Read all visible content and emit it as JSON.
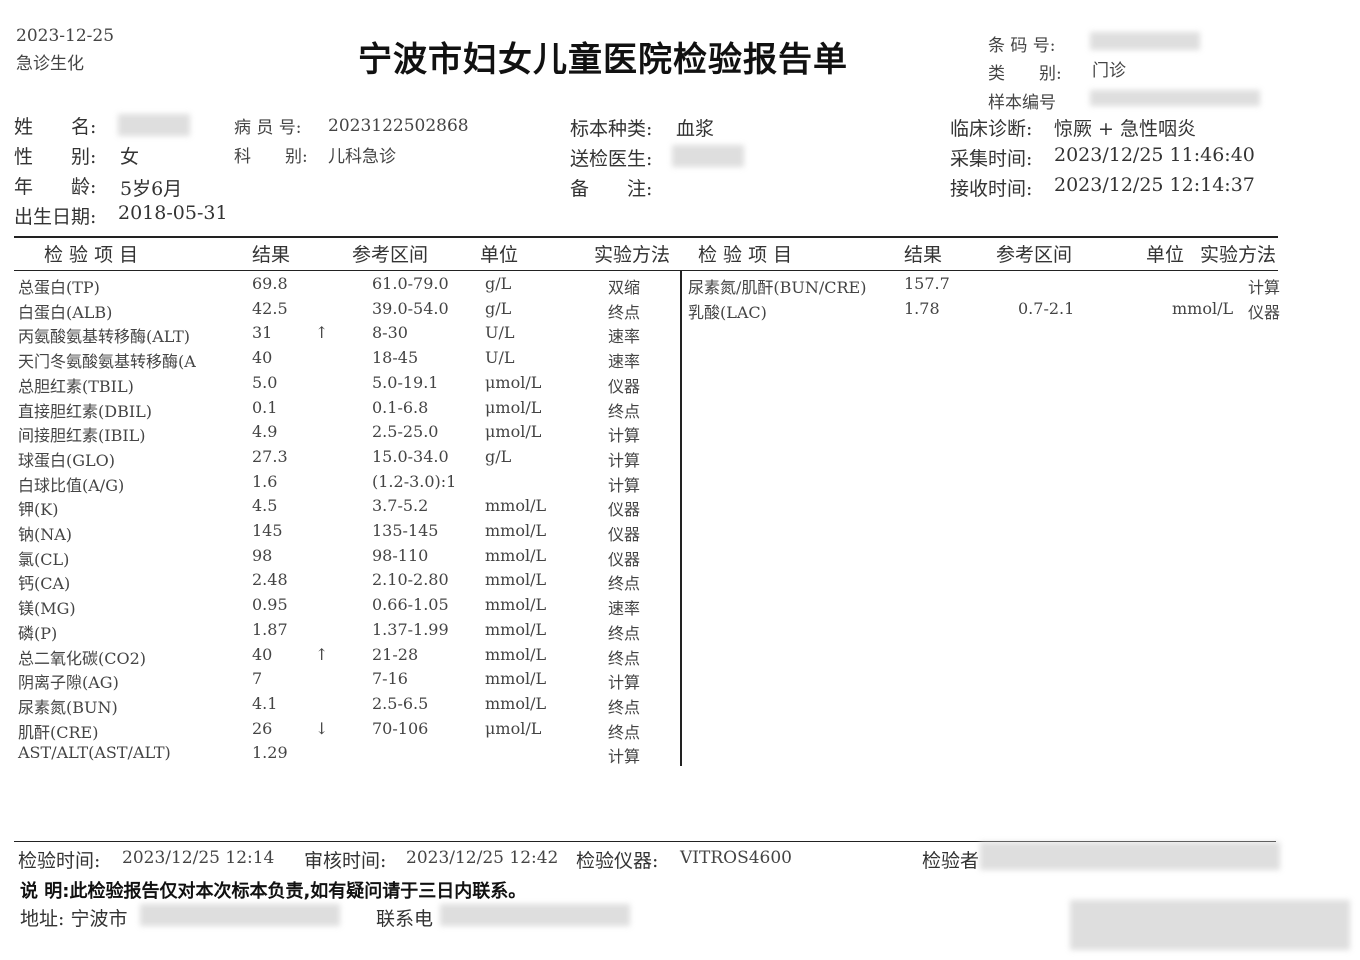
{
  "header": {
    "date": "2023-12-25",
    "category": "急诊生化",
    "title": "宁波市妇女儿童医院检验报告单",
    "barcode_label": "条 码 号:",
    "type_label": "类　　别:",
    "type_value": "门诊",
    "sample_no_label": "样本编号"
  },
  "patient": {
    "name_label": "姓　　名:",
    "patient_id_label": "病 员 号:",
    "patient_id": "2023122502868",
    "gender_label": "性　　别:",
    "gender": "女",
    "dept_label": "科　　别:",
    "dept": "儿科急诊",
    "age_label": "年　　龄:",
    "age": "5岁6月",
    "dob_label": "出生日期:",
    "dob": "2018-05-31",
    "specimen_label": "标本种类:",
    "specimen": "血浆",
    "doctor_label": "送检医生:",
    "remark_label": "备　　注:",
    "diagnosis_label": "临床诊断:",
    "diagnosis": "惊厥 + 急性咽炎",
    "collect_label": "采集时间:",
    "collect_time": "2023/12/25 11:46:40",
    "receive_label": "接收时间:",
    "receive_time": "2023/12/25 12:14:37"
  },
  "table": {
    "headers": [
      "检 验 项 目",
      "结果",
      "参考区间",
      "单位",
      "实验方法"
    ],
    "right_headers": [
      "检 验 项 目",
      "结果",
      "参考区间",
      "单位",
      "实验方法"
    ],
    "left_rows": [
      {
        "item": "总蛋白(TP)",
        "result": "69.8",
        "flag": "",
        "ref": "61.0-79.0",
        "unit": "g/L",
        "method": "双缩"
      },
      {
        "item": "白蛋白(ALB)",
        "result": "42.5",
        "flag": "",
        "ref": "39.0-54.0",
        "unit": "g/L",
        "method": "终点"
      },
      {
        "item": "丙氨酸氨基转移酶(ALT)",
        "result": "31",
        "flag": "↑",
        "ref": "8-30",
        "unit": "U/L",
        "method": "速率"
      },
      {
        "item": "天门冬氨酸氨基转移酶(A",
        "result": "40",
        "flag": "",
        "ref": "18-45",
        "unit": "U/L",
        "method": "速率"
      },
      {
        "item": "总胆红素(TBIL)",
        "result": "5.0",
        "flag": "",
        "ref": "5.0-19.1",
        "unit": "μmol/L",
        "method": "仪器"
      },
      {
        "item": "直接胆红素(DBIL)",
        "result": "0.1",
        "flag": "",
        "ref": "0.1-6.8",
        "unit": "μmol/L",
        "method": "终点"
      },
      {
        "item": "间接胆红素(IBIL)",
        "result": "4.9",
        "flag": "",
        "ref": "2.5-25.0",
        "unit": "μmol/L",
        "method": "计算"
      },
      {
        "item": "球蛋白(GLO)",
        "result": "27.3",
        "flag": "",
        "ref": "15.0-34.0",
        "unit": "g/L",
        "method": "计算"
      },
      {
        "item": "白球比值(A/G)",
        "result": "1.6",
        "flag": "",
        "ref": "(1.2-3.0):1",
        "unit": "",
        "method": "计算"
      },
      {
        "item": "钾(K)",
        "result": "4.5",
        "flag": "",
        "ref": "3.7-5.2",
        "unit": "mmol/L",
        "method": "仪器"
      },
      {
        "item": "钠(NA)",
        "result": "145",
        "flag": "",
        "ref": "135-145",
        "unit": "mmol/L",
        "method": "仪器"
      },
      {
        "item": "氯(CL)",
        "result": "98",
        "flag": "",
        "ref": "98-110",
        "unit": "mmol/L",
        "method": "仪器"
      },
      {
        "item": "钙(CA)",
        "result": "2.48",
        "flag": "",
        "ref": "2.10-2.80",
        "unit": "mmol/L",
        "method": "终点"
      },
      {
        "item": "镁(MG)",
        "result": "0.95",
        "flag": "",
        "ref": "0.66-1.05",
        "unit": "mmol/L",
        "method": "速率"
      },
      {
        "item": "磷(P)",
        "result": "1.87",
        "flag": "",
        "ref": "1.37-1.99",
        "unit": "mmol/L",
        "method": "终点"
      },
      {
        "item": "总二氧化碳(CO2)",
        "result": "40",
        "flag": "↑",
        "ref": "21-28",
        "unit": "mmol/L",
        "method": "终点"
      },
      {
        "item": "阴离子隙(AG)",
        "result": "7",
        "flag": "",
        "ref": "7-16",
        "unit": "mmol/L",
        "method": "计算"
      },
      {
        "item": "尿素氮(BUN)",
        "result": "4.1",
        "flag": "",
        "ref": "2.5-6.5",
        "unit": "mmol/L",
        "method": "终点"
      },
      {
        "item": "肌酐(CRE)",
        "result": "26",
        "flag": "↓",
        "ref": "70-106",
        "unit": "μmol/L",
        "method": "终点"
      },
      {
        "item": "AST/ALT(AST/ALT)",
        "result": "1.29",
        "flag": "",
        "ref": "",
        "unit": "",
        "method": "计算"
      }
    ],
    "right_rows": [
      {
        "item": "尿素氮/肌酐(BUN/CRE)",
        "result": "157.7",
        "flag": "",
        "ref": "",
        "unit": "",
        "method": "计算"
      },
      {
        "item": "乳酸(LAC)",
        "result": "1.78",
        "flag": "",
        "ref": "0.7-2.1",
        "unit": "mmol/L",
        "method": "仪器"
      }
    ]
  },
  "footer": {
    "test_time_label": "检验时间:",
    "test_time": "2023/12/25 12:14",
    "review_time_label": "审核时间:",
    "review_time": "2023/12/25 12:42",
    "instrument_label": "检验仪器:",
    "instrument": "VITROS4600",
    "tester_label": "检验者",
    "note": "说 明:此检验报告仅对本次标本负责,如有疑问请于三日内联系。",
    "address_label": "地址: 宁波市",
    "phone_label": "联系电"
  }
}
